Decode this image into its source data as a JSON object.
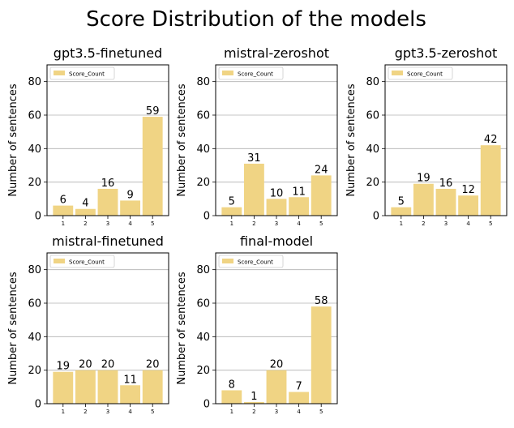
{
  "figure": {
    "suptitle": "Score Distribution of the models"
  },
  "style": {
    "bar_color": "#f0d484",
    "grid_color": "#b0b0b0",
    "axis_color": "#000000"
  },
  "chart_data": [
    {
      "type": "bar",
      "title": "gpt3.5-finetuned",
      "categories": [
        "1",
        "2",
        "3",
        "4",
        "5"
      ],
      "series": [
        {
          "name": "Score_Count",
          "values": [
            6,
            4,
            16,
            9,
            59
          ]
        }
      ],
      "ylabel": "Number of sentences",
      "xlabel": "",
      "ylim": [
        0,
        90
      ],
      "yticks": [
        "0",
        "20",
        "40",
        "60",
        "80"
      ],
      "grid": "y",
      "legend": "top-left"
    },
    {
      "type": "bar",
      "title": "mistral-zeroshot",
      "categories": [
        "1",
        "2",
        "3",
        "4",
        "5"
      ],
      "series": [
        {
          "name": "Score_Count",
          "values": [
            5,
            31,
            10,
            11,
            24
          ]
        }
      ],
      "ylabel": "Number of sentences",
      "xlabel": "",
      "ylim": [
        0,
        90
      ],
      "yticks": [
        "0",
        "20",
        "40",
        "60",
        "80"
      ],
      "grid": "y",
      "legend": "top-left"
    },
    {
      "type": "bar",
      "title": "gpt3.5-zeroshot",
      "categories": [
        "1",
        "2",
        "3",
        "4",
        "5"
      ],
      "series": [
        {
          "name": "Score_Count",
          "values": [
            5,
            19,
            16,
            12,
            42
          ]
        }
      ],
      "ylabel": "Number of sentences",
      "xlabel": "",
      "ylim": [
        0,
        90
      ],
      "yticks": [
        "0",
        "20",
        "40",
        "60",
        "80"
      ],
      "grid": "y",
      "legend": "top-left"
    },
    {
      "type": "bar",
      "title": "mistral-finetuned",
      "categories": [
        "1",
        "2",
        "3",
        "4",
        "5"
      ],
      "series": [
        {
          "name": "Score_Count",
          "values": [
            19,
            20,
            20,
            11,
            20
          ]
        }
      ],
      "ylabel": "Number of sentences",
      "xlabel": "",
      "ylim": [
        0,
        90
      ],
      "yticks": [
        "0",
        "20",
        "40",
        "60",
        "80"
      ],
      "grid": "y",
      "legend": "top-left"
    },
    {
      "type": "bar",
      "title": "final-model",
      "categories": [
        "1",
        "2",
        "3",
        "4",
        "5"
      ],
      "series": [
        {
          "name": "Score_Count",
          "values": [
            8,
            1,
            20,
            7,
            58
          ]
        }
      ],
      "ylabel": "Number of sentences",
      "xlabel": "",
      "ylim": [
        0,
        90
      ],
      "yticks": [
        "0",
        "20",
        "40",
        "60",
        "80"
      ],
      "grid": "y",
      "legend": "top-left"
    }
  ]
}
